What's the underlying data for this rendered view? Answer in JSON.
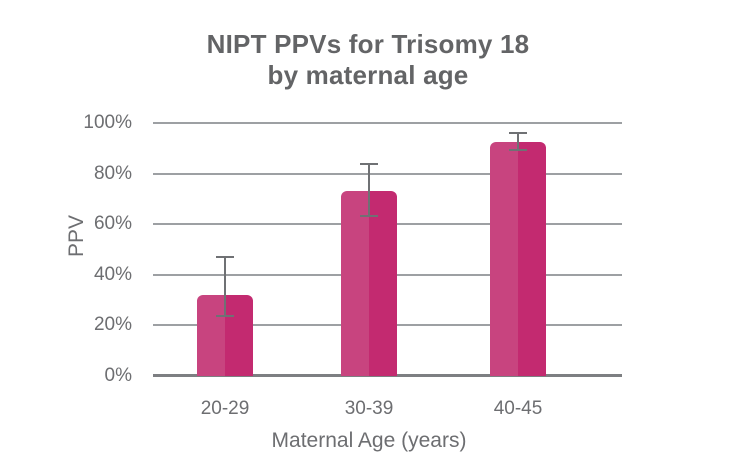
{
  "header": {
    "title_line1": "NIPT PPVs for Trisomy 18",
    "title_line2": "by maternal age"
  },
  "chart_data": {
    "type": "bar",
    "title": "NIPT PPVs for Trisomy 18 by maternal age",
    "xlabel": "Maternal Age (years)",
    "ylabel": "PPV",
    "categories": [
      "20-29",
      "30-39",
      "40-45"
    ],
    "values": [
      32,
      73,
      92.5
    ],
    "error_bars": [
      {
        "low": 23.5,
        "high": 47.5
      },
      {
        "low": 63,
        "high": 84
      },
      {
        "low": 89,
        "high": 96.5
      }
    ],
    "y_ticks": [
      {
        "value": 0,
        "label": "0%"
      },
      {
        "value": 20,
        "label": "20%"
      },
      {
        "value": 40,
        "label": "40%"
      },
      {
        "value": 60,
        "label": "60%"
      },
      {
        "value": 80,
        "label": "80%"
      },
      {
        "value": 100,
        "label": "100%"
      }
    ],
    "ylim": [
      0,
      100
    ],
    "grid": true,
    "legend": "none",
    "colors": {
      "bar_left": "#c8447f",
      "bar_right": "#c32a70",
      "error_bar": "#6f7174",
      "gridline": "#9da0a3",
      "axis_line": "#7d7f82",
      "title_text": "#636466",
      "axis_text": "#6d6e71",
      "background": "#ffffff"
    }
  }
}
